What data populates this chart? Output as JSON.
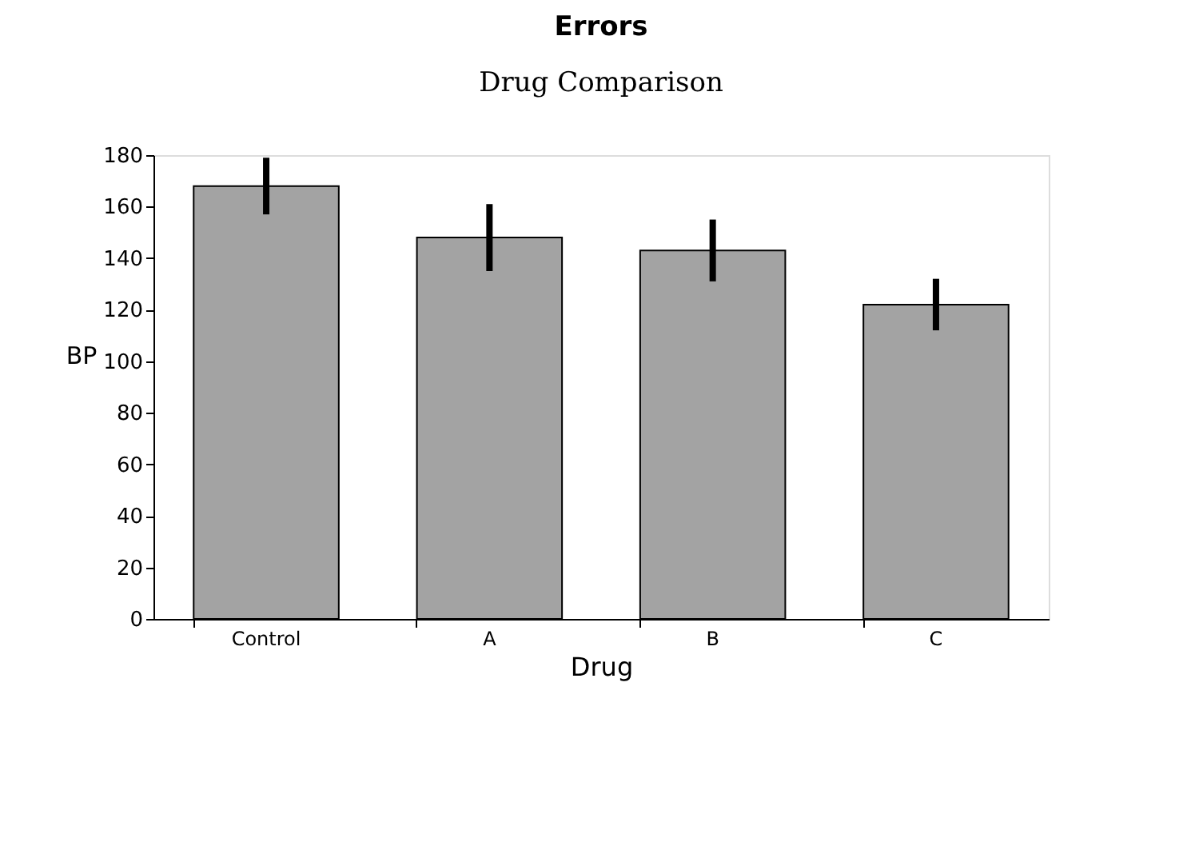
{
  "chart_data": {
    "type": "bar",
    "title": "Drug Comparison",
    "xlabel": "Drug",
    "ylabel": "BP",
    "annotations": [
      "Errors"
    ],
    "categories": [
      "Control",
      "A",
      "B",
      "C"
    ],
    "values": [
      168,
      148,
      143,
      122
    ],
    "errors": [
      11,
      13,
      12,
      10
    ],
    "color": "#a3a3a3",
    "ylim": [
      0,
      180
    ],
    "yticks": [
      0,
      20,
      40,
      60,
      80,
      100,
      120,
      140,
      160,
      180
    ],
    "grid": false
  }
}
